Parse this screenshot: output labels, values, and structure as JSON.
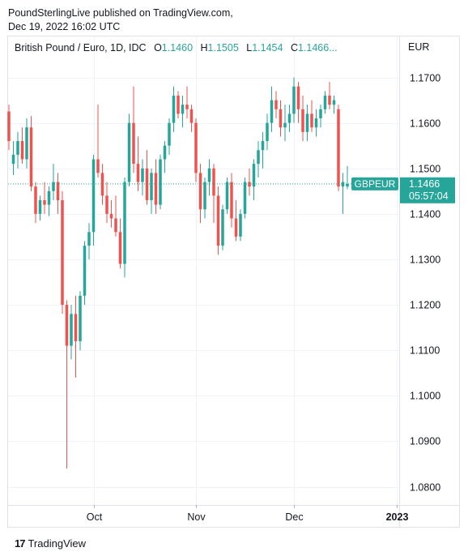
{
  "publisher": {
    "line1": "PoundSterlingLive published on TradingView.com,",
    "line2": "Dec 19, 2022 16:02 UTC"
  },
  "legend": {
    "title": "British Pound / Euro, 1D, IDC",
    "o_label": "O",
    "o_value": "1.1460",
    "h_label": "H",
    "h_value": "1.1505",
    "l_label": "L",
    "l_value": "1.1454",
    "c_label": "C",
    "c_value": "1.1466",
    "ellipsis": "..."
  },
  "footer": {
    "brand": "TradingView",
    "logo": "17"
  },
  "colors": {
    "up": "#26a69a",
    "down": "#ef5350",
    "grid": "#f0f3fa",
    "axis_text": "#131722"
  },
  "chart_data": {
    "type": "candlestick",
    "symbol": "GBPEUR",
    "currency": "EUR",
    "y_ticks": [
      "1.1700",
      "1.1600",
      "1.1500",
      "1.1400",
      "1.1300",
      "1.1200",
      "1.1100",
      "1.1000",
      "1.0900",
      "1.0800"
    ],
    "ylim": [
      1.076,
      1.179
    ],
    "x_ticks": [
      {
        "label": "Oct",
        "bar": 19
      },
      {
        "label": "Nov",
        "bar": 42
      },
      {
        "label": "Dec",
        "bar": 64
      },
      {
        "label": "2023",
        "bar": 87
      }
    ],
    "last_price": {
      "label": "GBPEUR",
      "value": "1.1466",
      "countdown": "05:57:04"
    },
    "candles": [
      [
        1.1625,
        1.164,
        1.154,
        1.156
      ],
      [
        1.151,
        1.156,
        1.1485,
        1.153
      ],
      [
        1.153,
        1.158,
        1.15,
        1.156
      ],
      [
        1.156,
        1.159,
        1.151,
        1.152
      ],
      [
        1.152,
        1.161,
        1.15,
        1.159
      ],
      [
        1.159,
        1.1615,
        1.145,
        1.146
      ],
      [
        1.146,
        1.147,
        1.138,
        1.14
      ],
      [
        1.14,
        1.144,
        1.1385,
        1.143
      ],
      [
        1.143,
        1.147,
        1.14,
        1.142
      ],
      [
        1.142,
        1.146,
        1.1395,
        1.145
      ],
      [
        1.145,
        1.151,
        1.143,
        1.147
      ],
      [
        1.147,
        1.149,
        1.14,
        1.143
      ],
      [
        1.143,
        1.145,
        1.118,
        1.12
      ],
      [
        1.12,
        1.121,
        1.084,
        1.111
      ],
      [
        1.111,
        1.12,
        1.108,
        1.118
      ],
      [
        1.118,
        1.122,
        1.104,
        1.112
      ],
      [
        1.112,
        1.123,
        1.11,
        1.122
      ],
      [
        1.122,
        1.134,
        1.12,
        1.133
      ],
      [
        1.133,
        1.138,
        1.13,
        1.136
      ],
      [
        1.136,
        1.153,
        1.133,
        1.152
      ],
      [
        1.152,
        1.164,
        1.148,
        1.149
      ],
      [
        1.149,
        1.151,
        1.142,
        1.144
      ],
      [
        1.144,
        1.147,
        1.138,
        1.14
      ],
      [
        1.14,
        1.143,
        1.137,
        1.139
      ],
      [
        1.139,
        1.144,
        1.135,
        1.136
      ],
      [
        1.136,
        1.139,
        1.128,
        1.129
      ],
      [
        1.129,
        1.148,
        1.126,
        1.147
      ],
      [
        1.147,
        1.162,
        1.146,
        1.16
      ],
      [
        1.16,
        1.168,
        1.149,
        1.151
      ],
      [
        1.151,
        1.157,
        1.145,
        1.147
      ],
      [
        1.147,
        1.152,
        1.144,
        1.15
      ],
      [
        1.15,
        1.154,
        1.142,
        1.143
      ],
      [
        1.143,
        1.15,
        1.14,
        1.149
      ],
      [
        1.149,
        1.152,
        1.14,
        1.142
      ],
      [
        1.142,
        1.153,
        1.141,
        1.152
      ],
      [
        1.152,
        1.156,
        1.149,
        1.155
      ],
      [
        1.155,
        1.161,
        1.153,
        1.16
      ],
      [
        1.16,
        1.168,
        1.158,
        1.166
      ],
      [
        1.166,
        1.167,
        1.161,
        1.162
      ],
      [
        1.162,
        1.166,
        1.159,
        1.164
      ],
      [
        1.164,
        1.168,
        1.161,
        1.163
      ],
      [
        1.163,
        1.164,
        1.158,
        1.16
      ],
      [
        1.16,
        1.161,
        1.147,
        1.149
      ],
      [
        1.149,
        1.151,
        1.138,
        1.141
      ],
      [
        1.141,
        1.148,
        1.139,
        1.147
      ],
      [
        1.147,
        1.152,
        1.144,
        1.15
      ],
      [
        1.15,
        1.151,
        1.138,
        1.144
      ],
      [
        1.144,
        1.146,
        1.131,
        1.133
      ],
      [
        1.133,
        1.142,
        1.132,
        1.141
      ],
      [
        1.141,
        1.148,
        1.14,
        1.147
      ],
      [
        1.147,
        1.149,
        1.137,
        1.139
      ],
      [
        1.139,
        1.143,
        1.134,
        1.135
      ],
      [
        1.135,
        1.141,
        1.134,
        1.14
      ],
      [
        1.14,
        1.148,
        1.139,
        1.147
      ],
      [
        1.147,
        1.15,
        1.144,
        1.146
      ],
      [
        1.146,
        1.152,
        1.143,
        1.151
      ],
      [
        1.151,
        1.156,
        1.148,
        1.154
      ],
      [
        1.154,
        1.158,
        1.15,
        1.156
      ],
      [
        1.156,
        1.162,
        1.154,
        1.16
      ],
      [
        1.16,
        1.168,
        1.158,
        1.165
      ],
      [
        1.165,
        1.167,
        1.161,
        1.163
      ],
      [
        1.163,
        1.165,
        1.157,
        1.159
      ],
      [
        1.159,
        1.164,
        1.156,
        1.16
      ],
      [
        1.16,
        1.164,
        1.158,
        1.162
      ],
      [
        1.162,
        1.17,
        1.16,
        1.168
      ],
      [
        1.168,
        1.169,
        1.16,
        1.163
      ],
      [
        1.163,
        1.166,
        1.156,
        1.158
      ],
      [
        1.158,
        1.164,
        1.156,
        1.162
      ],
      [
        1.162,
        1.165,
        1.158,
        1.159
      ],
      [
        1.159,
        1.163,
        1.157,
        1.161
      ],
      [
        1.161,
        1.164,
        1.159,
        1.163
      ],
      [
        1.163,
        1.167,
        1.162,
        1.166
      ],
      [
        1.166,
        1.169,
        1.163,
        1.164
      ],
      [
        1.164,
        1.166,
        1.162,
        1.165
      ],
      [
        1.163,
        1.164,
        1.145,
        1.146
      ],
      [
        1.146,
        1.149,
        1.14,
        1.147
      ],
      [
        1.146,
        1.1505,
        1.1454,
        1.1466
      ]
    ]
  }
}
